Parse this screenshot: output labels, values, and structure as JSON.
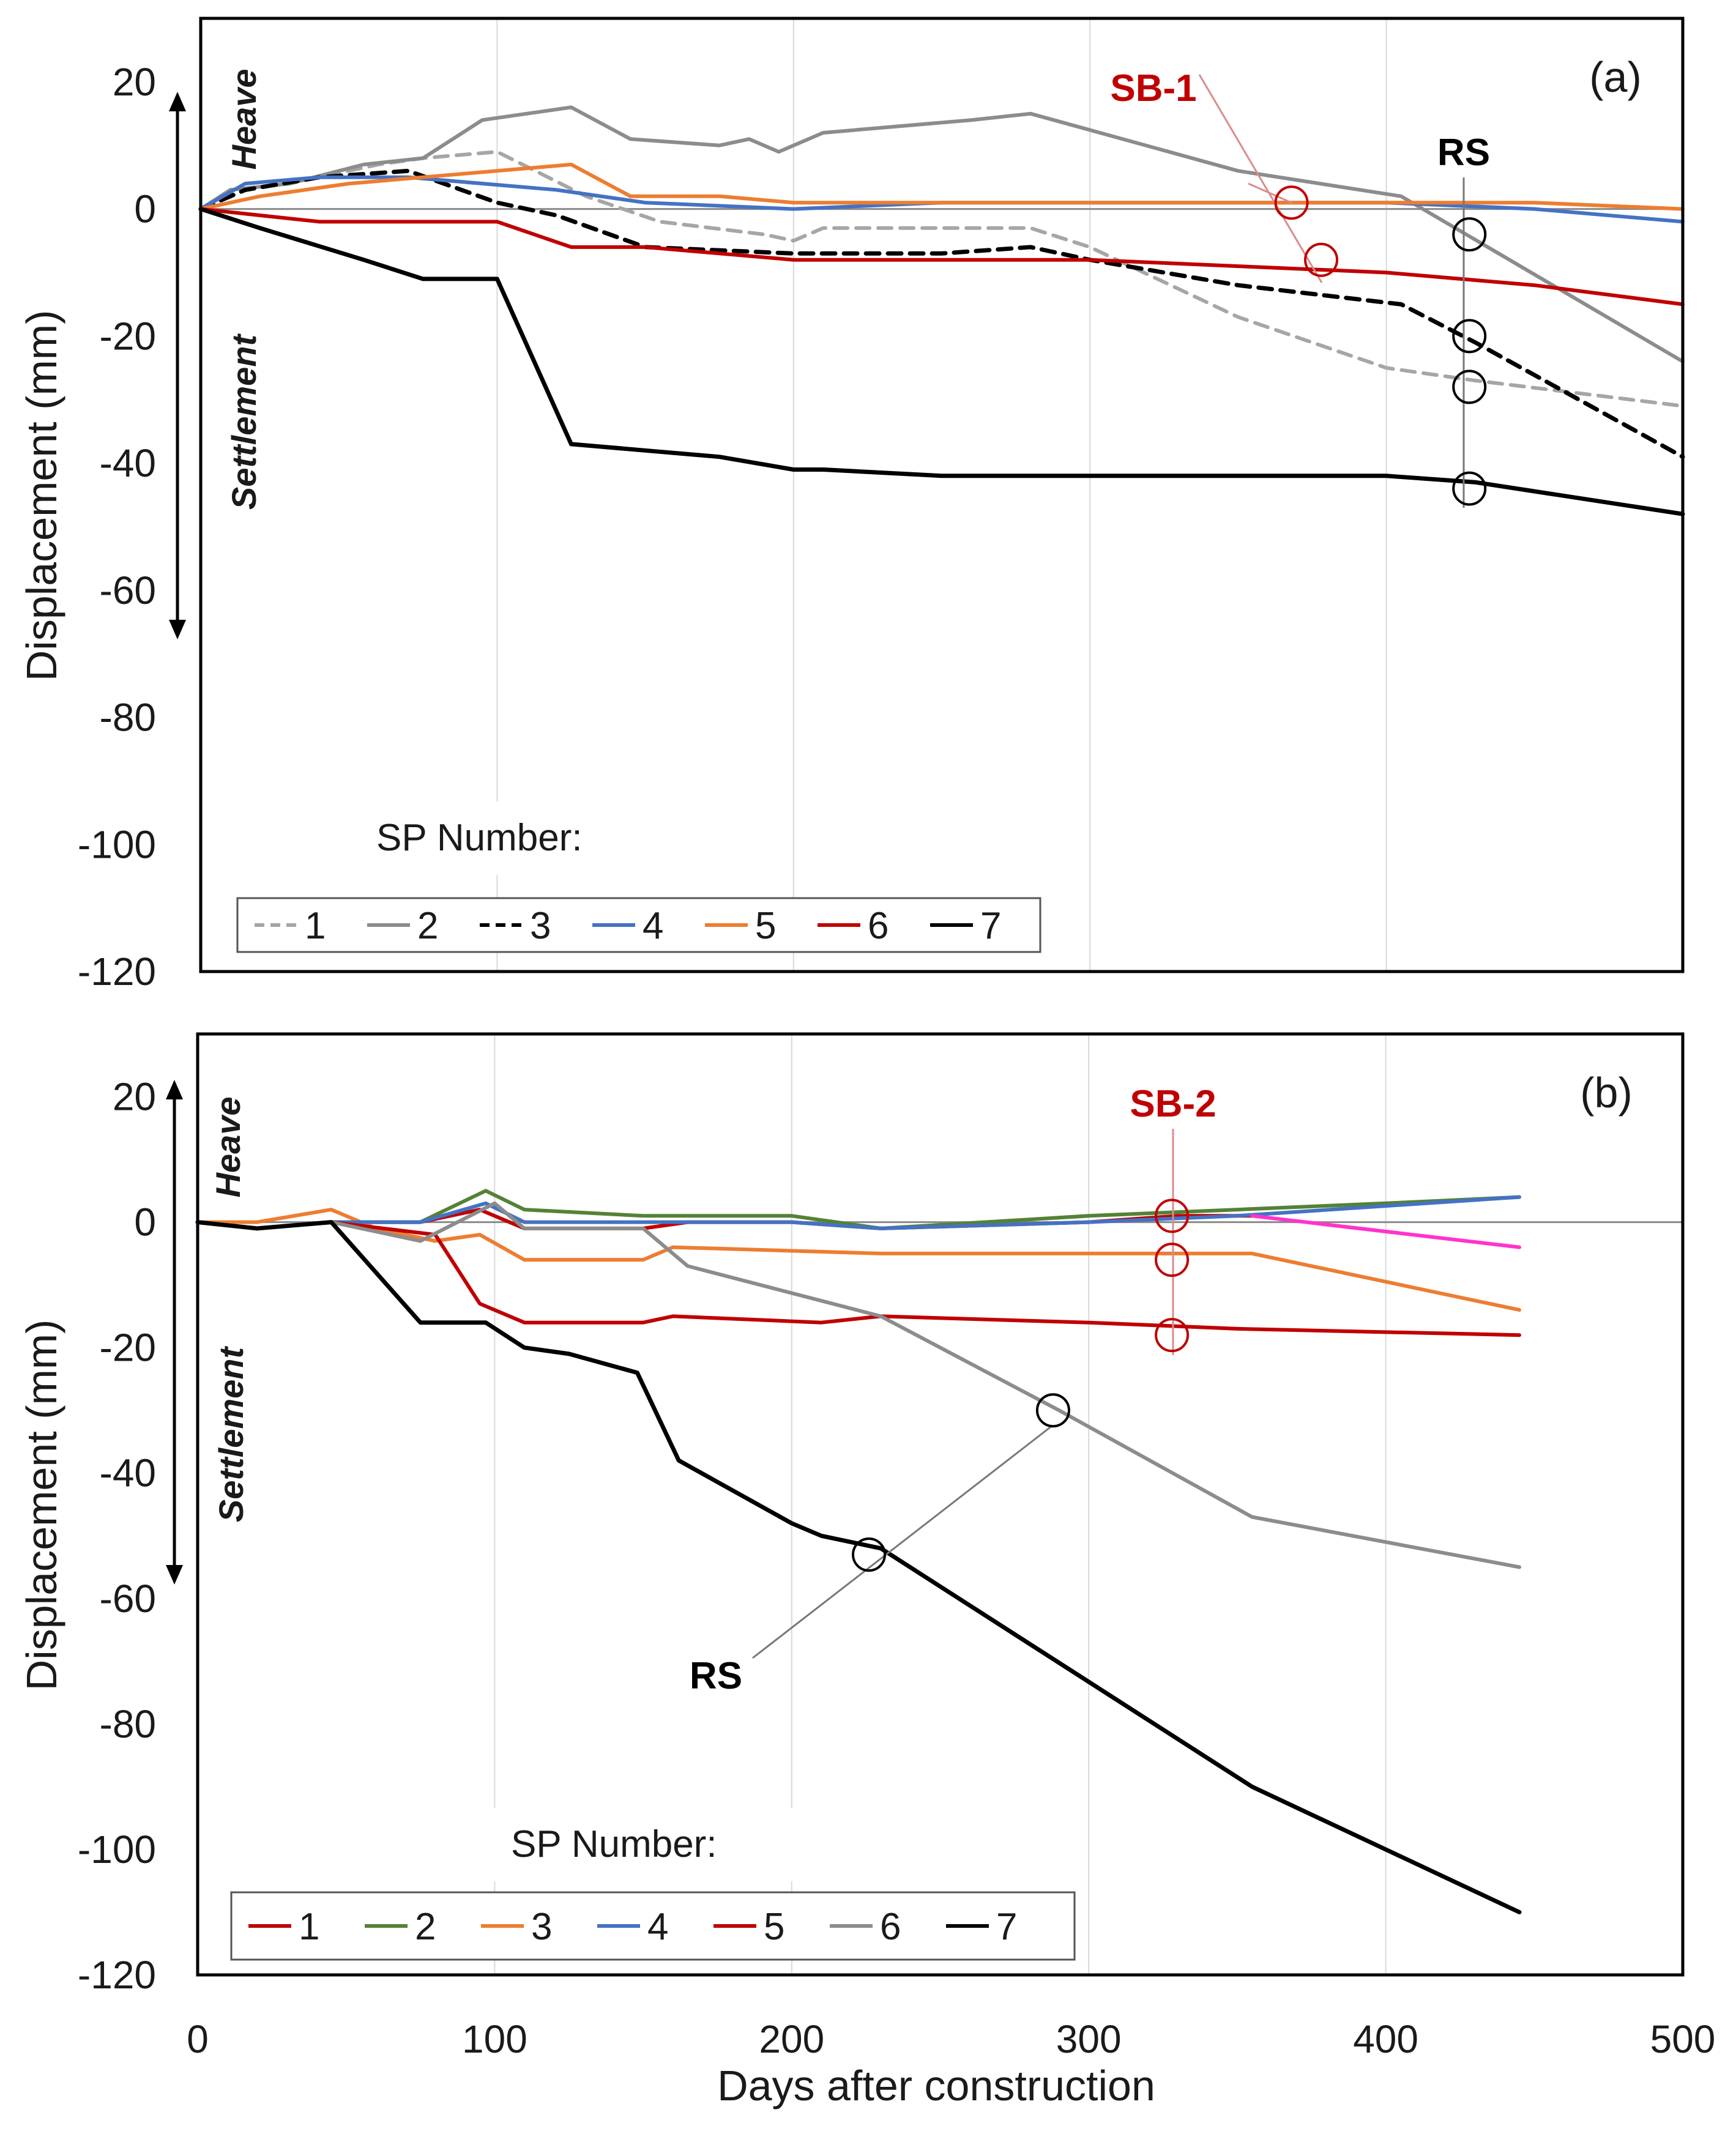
{
  "chart_data": [
    {
      "type": "line",
      "panel_label": "(a)",
      "xlabel": "Days after construction",
      "ylabel": "Displacement (mm)",
      "xlim": [
        0,
        500
      ],
      "ylim": [
        -120,
        30
      ],
      "xticks": [
        0,
        100,
        200,
        300,
        400,
        500
      ],
      "yticks": [
        20,
        0,
        -20,
        -40,
        -60,
        -80,
        -100,
        -120
      ],
      "grid": true,
      "heave_label": "Heave",
      "settlement_label": "Settlement",
      "legend_title": "SP Number:",
      "series": [
        {
          "name": "1",
          "color": "#a6a6a6",
          "dash": "dashed",
          "x": [
            0,
            10,
            30,
            60,
            75,
            100,
            130,
            155,
            190,
            200,
            210,
            250,
            280,
            300,
            350,
            400,
            430,
            500
          ],
          "y": [
            0,
            3,
            4,
            7,
            8,
            9,
            2,
            -2,
            -4,
            -5,
            -3,
            -3,
            -3,
            -6,
            -17,
            -25,
            -27,
            -31
          ]
        },
        {
          "name": "2",
          "color": "#8c8c8c",
          "dash": "solid",
          "x": [
            0,
            10,
            30,
            55,
            75,
            95,
            125,
            145,
            175,
            185,
            195,
            210,
            260,
            280,
            350,
            405,
            500
          ],
          "y": [
            0,
            3,
            4,
            7,
            8,
            14,
            16,
            11,
            10,
            11,
            9,
            12,
            14,
            15,
            6,
            2,
            -24
          ]
        },
        {
          "name": "3",
          "color": "#000000",
          "dash": "dashed",
          "x": [
            0,
            15,
            40,
            70,
            100,
            120,
            150,
            200,
            250,
            280,
            300,
            350,
            405,
            430,
            500
          ],
          "y": [
            0,
            3,
            5,
            6,
            1,
            -1,
            -6,
            -7,
            -7,
            -6,
            -8,
            -12,
            -15,
            -21,
            -39
          ]
        },
        {
          "name": "4",
          "color": "#4472c4",
          "dash": "solid",
          "x": [
            0,
            15,
            40,
            70,
            120,
            150,
            200,
            250,
            300,
            350,
            400,
            450,
            500
          ],
          "y": [
            0,
            4,
            5,
            5,
            3,
            1,
            0,
            1,
            1,
            1,
            1,
            0,
            -2
          ]
        },
        {
          "name": "5",
          "color": "#ed7d31",
          "dash": "solid",
          "x": [
            0,
            20,
            50,
            100,
            125,
            145,
            175,
            200,
            250,
            300,
            350,
            400,
            450,
            500
          ],
          "y": [
            0,
            2,
            4,
            6,
            7,
            2,
            2,
            1,
            1,
            1,
            1,
            1,
            1,
            0
          ]
        },
        {
          "name": "6",
          "color": "#c00000",
          "dash": "solid",
          "x": [
            0,
            20,
            40,
            50,
            70,
            90,
            100,
            125,
            150,
            175,
            200,
            250,
            300,
            350,
            400,
            450,
            500
          ],
          "y": [
            0,
            -1,
            -2,
            -2,
            -2,
            -2,
            -2,
            -6,
            -6,
            -7,
            -8,
            -8,
            -8,
            -9,
            -10,
            -12,
            -15
          ]
        },
        {
          "name": "7",
          "color": "#000000",
          "dash": "solid",
          "x": [
            0,
            20,
            55,
            75,
            95,
            100,
            125,
            150,
            175,
            200,
            210,
            250,
            280,
            300,
            350,
            400,
            430,
            500
          ],
          "y": [
            0,
            -3,
            -8,
            -11,
            -11,
            -11,
            -37,
            -38,
            -39,
            -41,
            -41,
            -42,
            -42,
            -42,
            -42,
            -42,
            -43,
            -48
          ]
        }
      ],
      "annotations": [
        {
          "label": "SB-1",
          "color": "#c00000",
          "markers": [
            {
              "x": 368,
              "y": 1
            },
            {
              "x": 378,
              "y": -8
            }
          ]
        },
        {
          "label": "RS",
          "color": "#000000",
          "markers": [
            {
              "x": 428,
              "y": -4
            },
            {
              "x": 428,
              "y": -20
            },
            {
              "x": 428,
              "y": -28
            },
            {
              "x": 428,
              "y": -44
            }
          ]
        }
      ]
    },
    {
      "type": "line",
      "panel_label": "(b)",
      "xlabel": "Days after construction",
      "ylabel": "Displacement (mm)",
      "xlim": [
        0,
        500
      ],
      "ylim": [
        -120,
        30
      ],
      "xticks": [
        0,
        100,
        200,
        300,
        400,
        500
      ],
      "yticks": [
        20,
        0,
        -20,
        -40,
        -60,
        -80,
        -100,
        -120
      ],
      "grid": true,
      "heave_label": "Heave",
      "settlement_label": "Settlement",
      "legend_title": "SP Number:",
      "series": [
        {
          "name": "1",
          "color": "#c00000",
          "dash": "solid",
          "x": [
            0,
            20,
            45,
            75,
            95,
            110,
            150,
            165,
            200,
            230,
            300,
            330,
            355
          ],
          "y": [
            0,
            -1,
            0,
            0,
            2,
            -1,
            -1,
            0,
            0,
            -1,
            0,
            1,
            1
          ]
        },
        {
          "name": "2",
          "color": "#548235",
          "dash": "solid",
          "x": [
            0,
            20,
            45,
            75,
            97,
            110,
            150,
            200,
            230,
            300,
            350,
            400,
            445
          ],
          "y": [
            0,
            -1,
            0,
            0,
            5,
            2,
            1,
            1,
            -1,
            1,
            2,
            3,
            4
          ]
        },
        {
          "name": "3",
          "color": "#ed7d31",
          "dash": "solid",
          "x": [
            0,
            20,
            45,
            60,
            80,
            95,
            110,
            150,
            160,
            230,
            300,
            355,
            445
          ],
          "y": [
            0,
            0,
            2,
            -1,
            -3,
            -2,
            -6,
            -6,
            -4,
            -5,
            -5,
            -5,
            -14
          ]
        },
        {
          "name": "4",
          "color": "#4472c4",
          "dash": "solid",
          "x": [
            0,
            20,
            45,
            75,
            97,
            110,
            150,
            200,
            230,
            300,
            350,
            445
          ],
          "y": [
            0,
            -1,
            0,
            0,
            3,
            0,
            0,
            0,
            -1,
            0,
            1,
            4
          ]
        },
        {
          "name": "5",
          "color": "#c00000",
          "dash": "solid",
          "x": [
            0,
            20,
            45,
            80,
            95,
            110,
            150,
            160,
            210,
            230,
            300,
            350,
            445
          ],
          "y": [
            0,
            -1,
            0,
            -2,
            -13,
            -16,
            -16,
            -15,
            -16,
            -15,
            -16,
            -17,
            -18
          ]
        },
        {
          "name": "6",
          "color": "#8c8c8c",
          "dash": "solid",
          "x": [
            0,
            20,
            45,
            75,
            100,
            110,
            150,
            165,
            230,
            290,
            355,
            445
          ],
          "y": [
            0,
            -1,
            0,
            -3,
            3,
            -1,
            -1,
            -7,
            -15,
            -30,
            -47,
            -55
          ]
        },
        {
          "name": "7",
          "color": "#000000",
          "dash": "solid",
          "x": [
            0,
            20,
            45,
            75,
            97,
            110,
            125,
            148,
            162,
            200,
            210,
            230,
            355,
            445
          ],
          "y": [
            0,
            -1,
            0,
            -16,
            -16,
            -20,
            -21,
            -24,
            -38,
            -48,
            -50,
            -52,
            -90,
            -110
          ]
        },
        {
          "name": "",
          "color": "#ff33cc",
          "dash": "solid",
          "x": [
            355,
            445
          ],
          "y": [
            1,
            -4
          ]
        }
      ],
      "annotations": [
        {
          "label": "SB-2",
          "color": "#c00000",
          "markers": [
            {
              "x": 328,
              "y": 1
            },
            {
              "x": 328,
              "y": -6
            },
            {
              "x": 328,
              "y": -18
            }
          ]
        },
        {
          "label": "RS",
          "color": "#000000",
          "markers": [
            {
              "x": 288,
              "y": -30
            },
            {
              "x": 226,
              "y": -53
            }
          ]
        }
      ]
    }
  ]
}
